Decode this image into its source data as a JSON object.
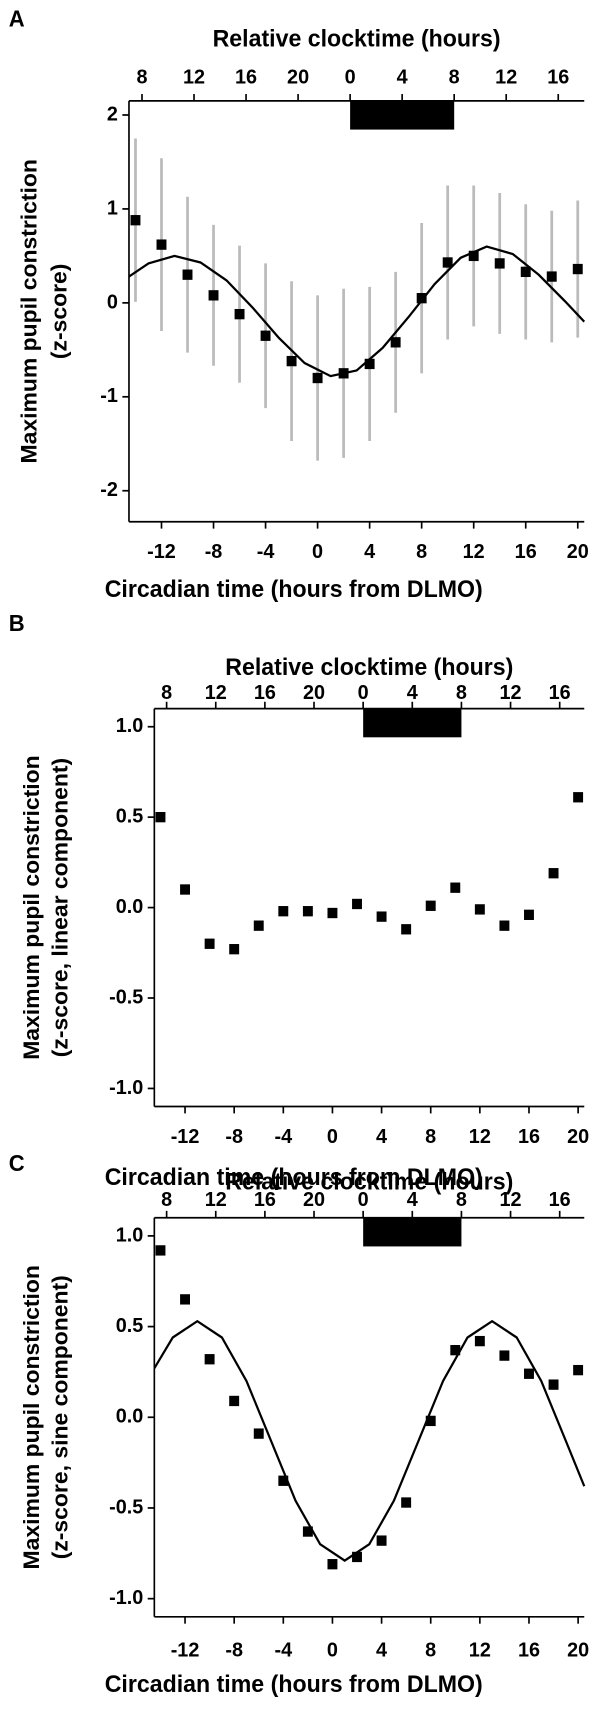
{
  "chart_data": [
    {
      "type": "scatter",
      "panel": "A",
      "title": "Relative clocktime (hours)",
      "xlabel": "Circadian time (hours from DLMO)",
      "ylabel": [
        "Maximum pupil constriction",
        "(z-score)"
      ],
      "xlim": [
        -14.5,
        20.5
      ],
      "xticks": [
        -12,
        -8,
        -4,
        0,
        4,
        8,
        12,
        16,
        20
      ],
      "x2lim": [
        7,
        42
      ],
      "x2ticks": [
        8,
        12,
        16,
        20,
        {
          "value": 24,
          "label": "0"
        },
        {
          "value": 28,
          "label": "4"
        },
        {
          "value": 32,
          "label": "8"
        },
        {
          "value": 36,
          "label": "12"
        },
        {
          "value": 40,
          "label": "16"
        }
      ],
      "ylim": [
        -2.33,
        2.15
      ],
      "yticks": [
        -2,
        -1,
        0,
        1,
        2
      ],
      "sleep_interval": [
        24,
        32
      ],
      "sleep_color": "#000000",
      "series": [
        {
          "color": "#000000",
          "error_color": "#bbbbbb",
          "x": [
            -14,
            -12,
            -10,
            -8,
            -6,
            -4,
            -2,
            0,
            2,
            4,
            6,
            8,
            10,
            12,
            14,
            16,
            18,
            20
          ],
          "values": [
            0.88,
            0.62,
            0.3,
            0.08,
            -0.12,
            -0.35,
            -0.62,
            -0.8,
            -0.75,
            -0.65,
            -0.42,
            0.05,
            0.43,
            0.5,
            0.42,
            0.33,
            0.28,
            0.36
          ],
          "error": [
            0.87,
            0.92,
            0.83,
            0.75,
            0.73,
            0.77,
            0.85,
            0.88,
            0.9,
            0.82,
            0.75,
            0.8,
            0.82,
            0.75,
            0.75,
            0.72,
            0.7,
            0.73
          ]
        },
        {
          "color": "#000000",
          "line": true,
          "x": [
            -14.5,
            -13,
            -11,
            -9,
            -7,
            -5,
            -3,
            -1,
            1,
            3,
            5,
            7,
            9,
            11,
            13,
            15,
            17,
            19,
            20.5
          ],
          "values": [
            0.28,
            0.42,
            0.5,
            0.43,
            0.24,
            -0.05,
            -0.37,
            -0.64,
            -0.78,
            -0.72,
            -0.48,
            -0.15,
            0.2,
            0.48,
            0.6,
            0.52,
            0.3,
            0.02,
            -0.2
          ]
        }
      ]
    },
    {
      "type": "scatter",
      "panel": "B",
      "title": "Relative clocktime (hours)",
      "xlabel": "Circadian time (hours from DLMO)",
      "ylabel": [
        "Maximum pupil constriction",
        "(z-score, linear component)"
      ],
      "xlim": [
        -14.5,
        20.5
      ],
      "xticks": [
        -12,
        -8,
        -4,
        0,
        4,
        8,
        12,
        16,
        20
      ],
      "x2lim": [
        7,
        42
      ],
      "x2ticks": [
        8,
        12,
        16,
        20,
        {
          "value": 24,
          "label": "0"
        },
        {
          "value": 28,
          "label": "4"
        },
        {
          "value": 32,
          "label": "8"
        },
        {
          "value": 36,
          "label": "12"
        },
        {
          "value": 40,
          "label": "16"
        }
      ],
      "ylim": [
        -1.1,
        1.1
      ],
      "yticks": [
        {
          "value": -1,
          "label": "-1.0"
        },
        {
          "value": -0.5,
          "label": "-0.5"
        },
        {
          "value": 0,
          "label": "0.0"
        },
        0.5,
        {
          "value": 1,
          "label": "1.0"
        }
      ],
      "sleep_interval": [
        24,
        32
      ],
      "sleep_color": "#000000",
      "series": [
        {
          "color": "#000000",
          "x": [
            -14,
            -12,
            -10,
            -8,
            -6,
            -4,
            -2,
            0,
            2,
            4,
            6,
            8,
            10,
            12,
            14,
            16,
            18,
            20
          ],
          "values": [
            0.5,
            0.1,
            -0.2,
            -0.23,
            -0.1,
            -0.02,
            -0.02,
            -0.03,
            0.02,
            -0.05,
            -0.12,
            0.01,
            0.11,
            -0.01,
            -0.1,
            -0.04,
            0.19,
            0.61
          ]
        }
      ]
    },
    {
      "type": "scatter",
      "panel": "C",
      "title": "Relative clocktime (hours)",
      "xlabel": "Circadian time (hours from DLMO)",
      "ylabel": [
        "Maximum pupil constriction",
        "(z-score, sine component)"
      ],
      "xlim": [
        -14.5,
        20.5
      ],
      "xticks": [
        -12,
        -8,
        -4,
        0,
        4,
        8,
        12,
        16,
        20
      ],
      "x2lim": [
        7,
        42
      ],
      "x2ticks": [
        8,
        12,
        16,
        20,
        {
          "value": 24,
          "label": "0"
        },
        {
          "value": 28,
          "label": "4"
        },
        {
          "value": 32,
          "label": "8"
        },
        {
          "value": 36,
          "label": "12"
        },
        {
          "value": 40,
          "label": "16"
        }
      ],
      "ylim": [
        -1.1,
        1.1
      ],
      "yticks": [
        {
          "value": -1,
          "label": "-1.0"
        },
        {
          "value": -0.5,
          "label": "-0.5"
        },
        {
          "value": 0,
          "label": "0.0"
        },
        0.5,
        {
          "value": 1,
          "label": "1.0"
        }
      ],
      "sleep_interval": [
        24,
        32
      ],
      "sleep_color": "#000000",
      "series": [
        {
          "color": "#000000",
          "x": [
            -14,
            -12,
            -10,
            -8,
            -6,
            -4,
            -2,
            0,
            2,
            4,
            6,
            8,
            10,
            12,
            14,
            16,
            18,
            20
          ],
          "values": [
            0.92,
            0.65,
            0.32,
            0.09,
            -0.09,
            -0.35,
            -0.63,
            -0.81,
            -0.77,
            -0.68,
            -0.47,
            -0.02,
            0.37,
            0.42,
            0.34,
            0.24,
            0.18,
            0.26
          ]
        },
        {
          "color": "#000000",
          "line": true,
          "x": [
            -14.5,
            -13,
            -11,
            -9,
            -7,
            -5,
            -3,
            -1,
            1,
            3,
            5,
            7,
            9,
            11,
            13,
            15,
            17,
            19,
            20.5
          ],
          "values": [
            0.27,
            0.44,
            0.53,
            0.44,
            0.2,
            -0.13,
            -0.46,
            -0.7,
            -0.79,
            -0.7,
            -0.46,
            -0.13,
            0.2,
            0.44,
            0.53,
            0.44,
            0.2,
            -0.13,
            -0.38
          ]
        }
      ]
    }
  ]
}
